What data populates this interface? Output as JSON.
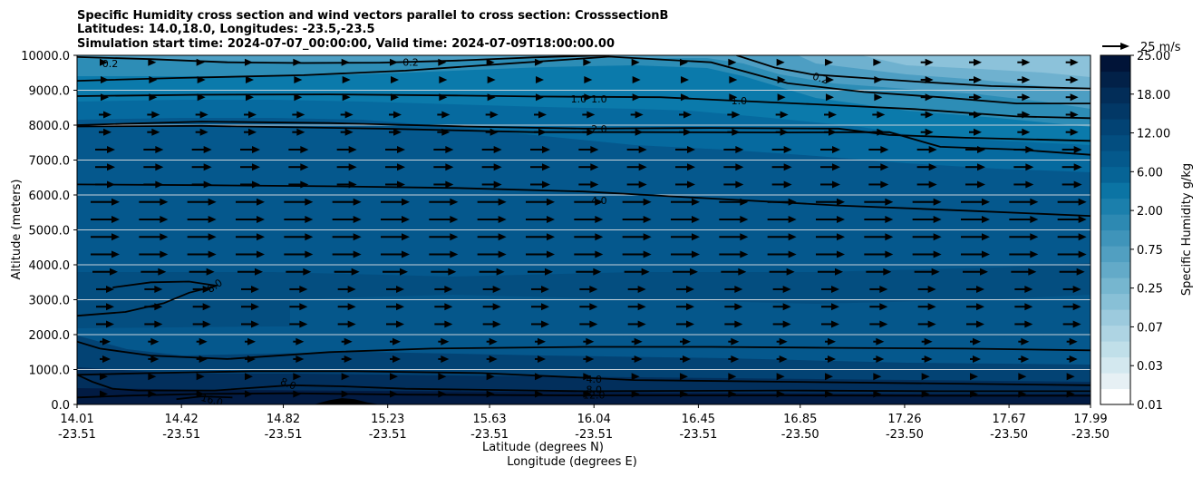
{
  "chart_data": {
    "type": "contour",
    "title_lines": [
      "Specific Humidity cross section and wind vectors parallel to cross section: CrosssectionB",
      "Latitudes: 14.0,18.0, Longitudes: -23.5,-23.5",
      "Simulation start time: 2024-07-07_00:00:00, Valid time: 2024-07-09T18:00:00.00"
    ],
    "ylabel": "Altitude (meters)",
    "xlabel_lat": "Latitude (degrees N)",
    "xlabel_lon": "Longitude (degrees E)",
    "ylim": [
      0,
      10000
    ],
    "y_ticks": [
      "0.0",
      "1000.0",
      "2000.0",
      "3000.0",
      "4000.0",
      "5000.0",
      "6000.0",
      "7000.0",
      "8000.0",
      "9000.0",
      "10000.0"
    ],
    "y_tick_values": [
      0,
      1000,
      2000,
      3000,
      4000,
      5000,
      6000,
      7000,
      8000,
      9000,
      10000
    ],
    "x_ticks": [
      {
        "lat": "14.01",
        "lon": "-23.51"
      },
      {
        "lat": "14.42",
        "lon": "-23.51"
      },
      {
        "lat": "14.82",
        "lon": "-23.51"
      },
      {
        "lat": "15.23",
        "lon": "-23.51"
      },
      {
        "lat": "15.63",
        "lon": "-23.51"
      },
      {
        "lat": "16.04",
        "lon": "-23.51"
      },
      {
        "lat": "16.45",
        "lon": "-23.51"
      },
      {
        "lat": "16.85",
        "lon": "-23.50"
      },
      {
        "lat": "17.26",
        "lon": "-23.50"
      },
      {
        "lat": "17.67",
        "lon": "-23.50"
      },
      {
        "lat": "17.99",
        "lon": "-23.50"
      }
    ],
    "x_tick_values": [
      14.01,
      14.42,
      14.82,
      15.23,
      15.63,
      16.04,
      16.45,
      16.85,
      17.26,
      17.67,
      17.99
    ],
    "colorbar": {
      "label": "Specific Humidity g/kg",
      "tick_labels": [
        "0.01",
        "0.03",
        "0.07",
        "0.25",
        "0.75",
        "2.00",
        "6.00",
        "12.00",
        "18.00",
        "25.00"
      ],
      "colors": [
        "#ffffff",
        "#e6f0f4",
        "#d3e8ef",
        "#c0dfe9",
        "#aed4e3",
        "#9ccadd",
        "#88c0d6",
        "#76b6cf",
        "#63aac8",
        "#519fc1",
        "#3f94ba",
        "#2d89b2",
        "#1b7fac",
        "#0b74a4",
        "#066496",
        "#04598c",
        "#034e80",
        "#024374",
        "#023866",
        "#022d58",
        "#022148",
        "#011438"
      ]
    },
    "quiver_key": {
      "label": "25 m/s",
      "speed": 25
    },
    "contour_labels": [
      {
        "text": "0.2",
        "lat": 14.14,
        "alt": 9760,
        "rot": 0
      },
      {
        "text": "0.2",
        "lat": 15.32,
        "alt": 9800,
        "rot": 0
      },
      {
        "text": "0.2",
        "lat": 16.93,
        "alt": 9350,
        "rot": 18
      },
      {
        "text": "1.0",
        "lat": 15.98,
        "alt": 8750,
        "rot": 0
      },
      {
        "text": "1.0",
        "lat": 16.06,
        "alt": 8750,
        "rot": 0
      },
      {
        "text": "1.0",
        "lat": 16.61,
        "alt": 8700,
        "rot": 0
      },
      {
        "text": "2.0",
        "lat": 16.06,
        "alt": 7900,
        "rot": 0
      },
      {
        "text": "4.0",
        "lat": 16.06,
        "alt": 5850,
        "rot": 0
      },
      {
        "text": "8.0",
        "lat": 14.55,
        "alt": 3400,
        "rot": -35
      },
      {
        "text": "8.0",
        "lat": 14.84,
        "alt": 600,
        "rot": 22
      },
      {
        "text": "16.0",
        "lat": 14.54,
        "alt": 130,
        "rot": 15
      },
      {
        "text": "4.0",
        "lat": 16.04,
        "alt": 730,
        "rot": 0
      },
      {
        "text": "8.0",
        "lat": 16.04,
        "alt": 430,
        "rot": 0
      },
      {
        "text": "12.0",
        "lat": 16.04,
        "alt": 270,
        "rot": 0
      }
    ],
    "contours": [
      {
        "level": "0.2",
        "points": [
          [
            14.01,
            9950
          ],
          [
            14.3,
            9890
          ],
          [
            14.6,
            9800
          ],
          [
            14.9,
            9780
          ],
          [
            15.2,
            9790
          ],
          [
            15.5,
            9850
          ],
          [
            15.8,
            9940
          ],
          [
            16.1,
            10000
          ]
        ]
      },
      {
        "level": "0.2b",
        "points": [
          [
            16.6,
            10000
          ],
          [
            16.75,
            9650
          ],
          [
            16.9,
            9450
          ],
          [
            17.1,
            9350
          ],
          [
            17.3,
            9250
          ],
          [
            17.6,
            9120
          ],
          [
            17.99,
            9050
          ]
        ]
      },
      {
        "level": "0.5",
        "points": [
          [
            14.01,
            9270
          ],
          [
            14.4,
            9350
          ],
          [
            14.9,
            9430
          ],
          [
            15.3,
            9560
          ],
          [
            15.7,
            9760
          ],
          [
            16.1,
            9960
          ],
          [
            16.5,
            9800
          ],
          [
            16.8,
            9200
          ],
          [
            17.1,
            8950
          ],
          [
            17.4,
            8800
          ],
          [
            17.7,
            8620
          ],
          [
            17.99,
            8620
          ]
        ]
      },
      {
        "level": "1.0",
        "points": [
          [
            14.01,
            8830
          ],
          [
            14.5,
            8870
          ],
          [
            15.0,
            8880
          ],
          [
            15.5,
            8850
          ],
          [
            15.8,
            8820
          ],
          [
            16.3,
            8800
          ],
          [
            16.6,
            8700
          ],
          [
            16.9,
            8600
          ],
          [
            17.3,
            8460
          ],
          [
            17.7,
            8250
          ],
          [
            17.99,
            8200
          ]
        ]
      },
      {
        "level": "1.5",
        "points": [
          [
            14.01,
            8000
          ],
          [
            14.5,
            8100
          ],
          [
            15.0,
            8060
          ],
          [
            15.6,
            7950
          ],
          [
            16.0,
            7900
          ],
          [
            16.5,
            7920
          ],
          [
            17.0,
            7900
          ],
          [
            17.2,
            7720
          ],
          [
            17.5,
            7640
          ],
          [
            17.99,
            7550
          ]
        ]
      },
      {
        "level": "2.0",
        "points": [
          [
            14.01,
            7960
          ],
          [
            14.5,
            7980
          ],
          [
            15.2,
            7900
          ],
          [
            15.8,
            7800
          ],
          [
            16.2,
            7800
          ],
          [
            16.8,
            7790
          ],
          [
            17.2,
            7800
          ],
          [
            17.4,
            7380
          ],
          [
            17.7,
            7300
          ],
          [
            17.99,
            7150
          ]
        ]
      },
      {
        "level": "4.0",
        "points": [
          [
            14.01,
            6300
          ],
          [
            14.5,
            6280
          ],
          [
            15.0,
            6250
          ],
          [
            15.5,
            6200
          ],
          [
            16.0,
            6100
          ],
          [
            16.5,
            5900
          ],
          [
            17.0,
            5700
          ],
          [
            17.5,
            5550
          ],
          [
            17.99,
            5400
          ]
        ]
      },
      {
        "level": "8.0a",
        "points": [
          [
            14.01,
            2540
          ],
          [
            14.2,
            2650
          ],
          [
            14.35,
            2900
          ],
          [
            14.45,
            3200
          ],
          [
            14.56,
            3400
          ],
          [
            14.45,
            3520
          ],
          [
            14.3,
            3500
          ],
          [
            14.15,
            3350
          ]
        ]
      },
      {
        "level": "8.0b",
        "points": [
          [
            14.01,
            1800
          ],
          [
            14.1,
            1600
          ],
          [
            14.3,
            1400
          ],
          [
            14.6,
            1300
          ],
          [
            15.0,
            1500
          ],
          [
            15.4,
            1600
          ],
          [
            16.0,
            1650
          ],
          [
            16.5,
            1650
          ],
          [
            17.0,
            1620
          ],
          [
            17.5,
            1600
          ],
          [
            17.99,
            1550
          ]
        ]
      },
      {
        "level": "4.0low",
        "points": [
          [
            14.01,
            850
          ],
          [
            14.3,
            900
          ],
          [
            14.7,
            950
          ],
          [
            15.1,
            950
          ],
          [
            15.6,
            900
          ],
          [
            16.2,
            700
          ],
          [
            16.8,
            650
          ],
          [
            17.4,
            600
          ],
          [
            17.99,
            550
          ]
        ]
      },
      {
        "level": "8.0low",
        "points": [
          [
            14.01,
            850
          ],
          [
            14.07,
            650
          ],
          [
            14.15,
            450
          ],
          [
            14.25,
            400
          ],
          [
            14.55,
            400
          ],
          [
            14.85,
            550
          ],
          [
            15.05,
            520
          ],
          [
            15.3,
            450
          ],
          [
            16.0,
            380
          ],
          [
            16.8,
            400
          ],
          [
            17.4,
            380
          ],
          [
            17.99,
            380
          ]
        ]
      },
      {
        "level": "12.0",
        "points": [
          [
            14.01,
            200
          ],
          [
            14.2,
            250
          ],
          [
            14.5,
            300
          ],
          [
            14.85,
            320
          ],
          [
            15.3,
            280
          ],
          [
            16.0,
            260
          ],
          [
            16.8,
            260
          ],
          [
            17.4,
            250
          ],
          [
            17.99,
            250
          ]
        ]
      },
      {
        "level": "16.0",
        "points": [
          [
            14.4,
            150
          ],
          [
            14.5,
            230
          ],
          [
            14.62,
            200
          ]
        ]
      }
    ],
    "terrain_patch": [
      [
        14.94,
        0
      ],
      [
        15.0,
        120
      ],
      [
        15.05,
        180
      ],
      [
        15.1,
        150
      ],
      [
        15.15,
        60
      ],
      [
        15.2,
        0
      ]
    ]
  }
}
